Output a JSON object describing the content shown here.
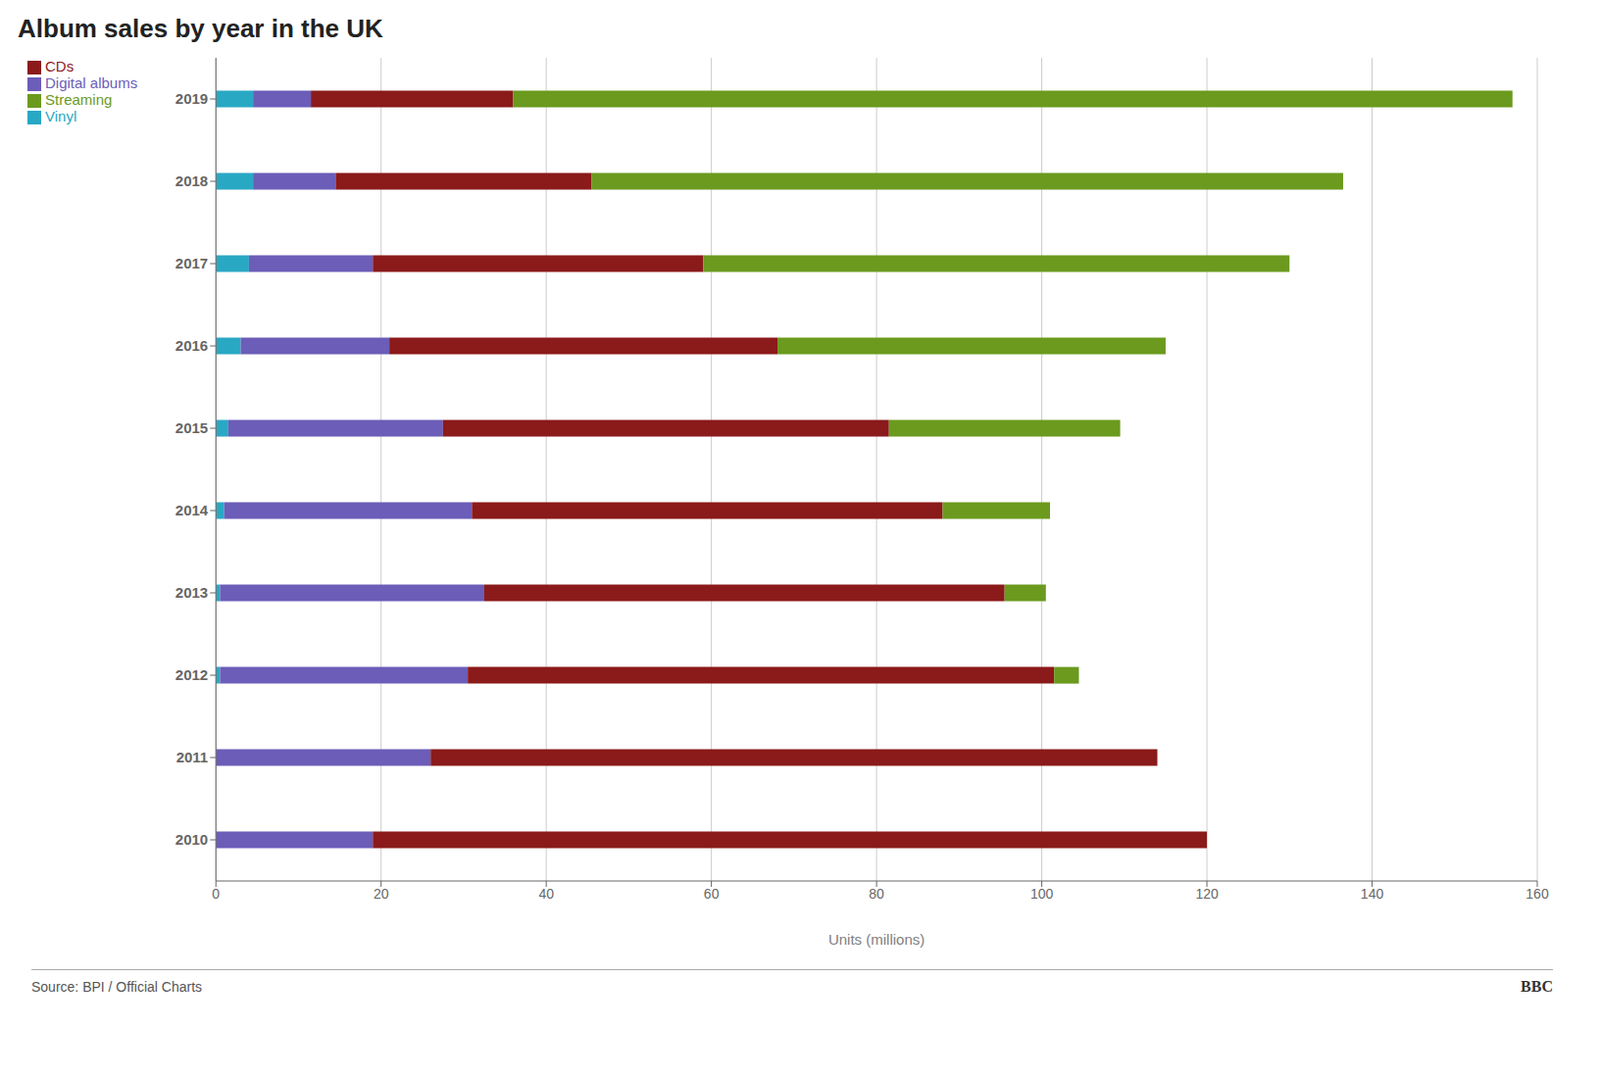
{
  "chart_data": {
    "type": "bar",
    "orientation": "horizontal",
    "stacked": true,
    "title": "Album sales by year in the UK",
    "xlabel": "Units (millions)",
    "categories": [
      "2010",
      "2011",
      "2012",
      "2013",
      "2014",
      "2015",
      "2016",
      "2017",
      "2018",
      "2019"
    ],
    "series": [
      {
        "name": "Vinyl",
        "color": "#29a8c4",
        "values": [
          0.0,
          0.0,
          0.5,
          0.5,
          1.0,
          1.5,
          3.0,
          4.0,
          4.5,
          4.5
        ]
      },
      {
        "name": "Digital albums",
        "color": "#6b5db8",
        "values": [
          19.0,
          26.0,
          30.0,
          32.0,
          30.0,
          26.0,
          18.0,
          15.0,
          10.0,
          7.0
        ]
      },
      {
        "name": "CDs",
        "color": "#8b1a1a",
        "values": [
          101.0,
          88.0,
          71.0,
          63.0,
          57.0,
          54.0,
          47.0,
          40.0,
          31.0,
          24.5
        ]
      },
      {
        "name": "Streaming",
        "color": "#6b9a1e",
        "values": [
          0.0,
          0.0,
          3.0,
          5.0,
          13.0,
          28.0,
          47.0,
          71.0,
          91.0,
          121.0
        ]
      }
    ],
    "xlim": [
      0,
      160
    ],
    "xticks": [
      0,
      20,
      40,
      60,
      80,
      100,
      120,
      140,
      160
    ],
    "grid": true,
    "legend": "upper left",
    "annotations": [
      "Source: BPI / Official Charts",
      "BBC"
    ]
  }
}
